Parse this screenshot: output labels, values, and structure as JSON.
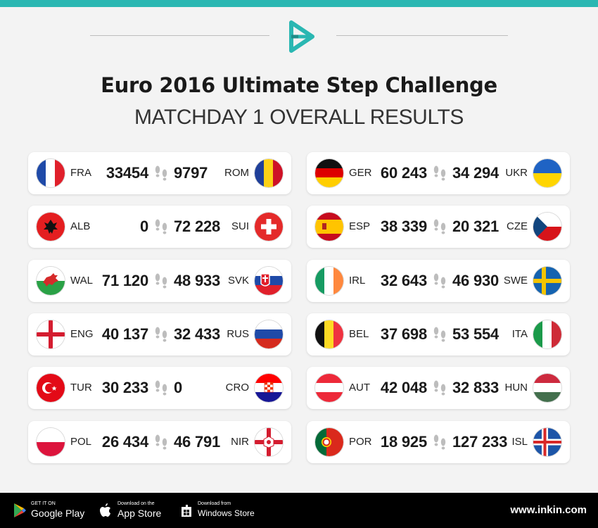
{
  "header": {
    "accent_color": "#2ab7b2",
    "logo_icon": "inkin-logo-icon",
    "title": "Euro 2016 Ultimate Step Challenge",
    "subtitle": "MATCHDAY 1 OVERALL RESULTS"
  },
  "matches": [
    {
      "home_code": "FRA",
      "home_score": "33454",
      "away_score": "9797",
      "away_code": "ROM",
      "home_flag": "flag-france-icon",
      "away_flag": "flag-romania-icon"
    },
    {
      "home_code": "GER",
      "home_score": "60 243",
      "away_score": "34 294",
      "away_code": "UKR",
      "home_flag": "flag-germany-icon",
      "away_flag": "flag-ukraine-icon"
    },
    {
      "home_code": "ALB",
      "home_score": "0",
      "away_score": "72 228",
      "away_code": "SUI",
      "home_flag": "flag-albania-icon",
      "away_flag": "flag-switzerland-icon"
    },
    {
      "home_code": "ESP",
      "home_score": "38 339",
      "away_score": "20 321",
      "away_code": "CZE",
      "home_flag": "flag-spain-icon",
      "away_flag": "flag-czech-icon"
    },
    {
      "home_code": "WAL",
      "home_score": "71 120",
      "away_score": "48 933",
      "away_code": "SVK",
      "home_flag": "flag-wales-icon",
      "away_flag": "flag-slovakia-icon"
    },
    {
      "home_code": "IRL",
      "home_score": "32 643",
      "away_score": "46 930",
      "away_code": "SWE",
      "home_flag": "flag-ireland-icon",
      "away_flag": "flag-sweden-icon"
    },
    {
      "home_code": "ENG",
      "home_score": "40 137",
      "away_score": "32 433",
      "away_code": "RUS",
      "home_flag": "flag-england-icon",
      "away_flag": "flag-russia-icon"
    },
    {
      "home_code": "BEL",
      "home_score": "37 698",
      "away_score": "53 554",
      "away_code": "ITA",
      "home_flag": "flag-belgium-icon",
      "away_flag": "flag-italy-icon"
    },
    {
      "home_code": "TUR",
      "home_score": "30 233",
      "away_score": "0",
      "away_code": "CRO",
      "home_flag": "flag-turkey-icon",
      "away_flag": "flag-croatia-icon"
    },
    {
      "home_code": "AUT",
      "home_score": "42 048",
      "away_score": "32 833",
      "away_code": "HUN",
      "home_flag": "flag-austria-icon",
      "away_flag": "flag-hungary-icon"
    },
    {
      "home_code": "POL",
      "home_score": "26 434",
      "away_score": "46 791",
      "away_code": "NIR",
      "home_flag": "flag-poland-icon",
      "away_flag": "flag-northern-ireland-icon"
    },
    {
      "home_code": "POR",
      "home_score": "18 925",
      "away_score": "127 233",
      "away_code": "ISL",
      "home_flag": "flag-portugal-icon",
      "away_flag": "flag-iceland-icon"
    }
  ],
  "footer": {
    "google_play": {
      "small": "GET IT ON",
      "big": "Google Play",
      "icon": "google-play-icon"
    },
    "app_store": {
      "small": "Download on the",
      "big": "App Store",
      "icon": "apple-icon"
    },
    "windows_store": {
      "small": "Download from",
      "big": "Windows Store",
      "icon": "windows-icon"
    },
    "website": "www.inkin.com"
  }
}
